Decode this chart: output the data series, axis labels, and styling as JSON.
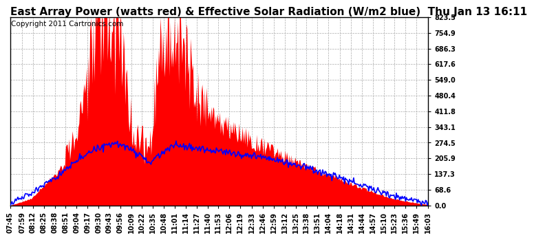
{
  "title": "East Array Power (watts red) & Effective Solar Radiation (W/m2 blue)  Thu Jan 13 16:11",
  "copyright": "Copyright 2011 Cartronics.com",
  "background_color": "#ffffff",
  "plot_bg_color": "#ffffff",
  "grid_color": "#aaaaaa",
  "ytick_labels": [
    "0.0",
    "68.6",
    "137.3",
    "205.9",
    "274.5",
    "343.1",
    "411.8",
    "480.4",
    "549.0",
    "617.6",
    "686.3",
    "754.9",
    "823.5"
  ],
  "ytick_values": [
    0.0,
    68.6,
    137.3,
    205.9,
    274.5,
    343.1,
    411.8,
    480.4,
    549.0,
    617.6,
    686.3,
    754.9,
    823.5
  ],
  "ymax": 823.5,
  "ymin": 0.0,
  "title_fontsize": 11,
  "copyright_fontsize": 7.5,
  "tick_fontsize": 7,
  "red_color": "#ff0000",
  "blue_color": "#0000ff",
  "fill_color": "#ff0000",
  "x_labels": [
    "07:45",
    "07:59",
    "08:12",
    "08:25",
    "08:38",
    "08:51",
    "09:04",
    "09:17",
    "09:30",
    "09:43",
    "09:56",
    "10:09",
    "10:22",
    "10:35",
    "10:48",
    "11:01",
    "11:14",
    "11:27",
    "11:40",
    "11:53",
    "12:06",
    "12:19",
    "12:33",
    "12:46",
    "12:59",
    "13:12",
    "13:25",
    "13:38",
    "13:51",
    "14:04",
    "14:18",
    "14:31",
    "14:44",
    "14:57",
    "15:10",
    "15:23",
    "15:36",
    "15:49",
    "16:03"
  ]
}
